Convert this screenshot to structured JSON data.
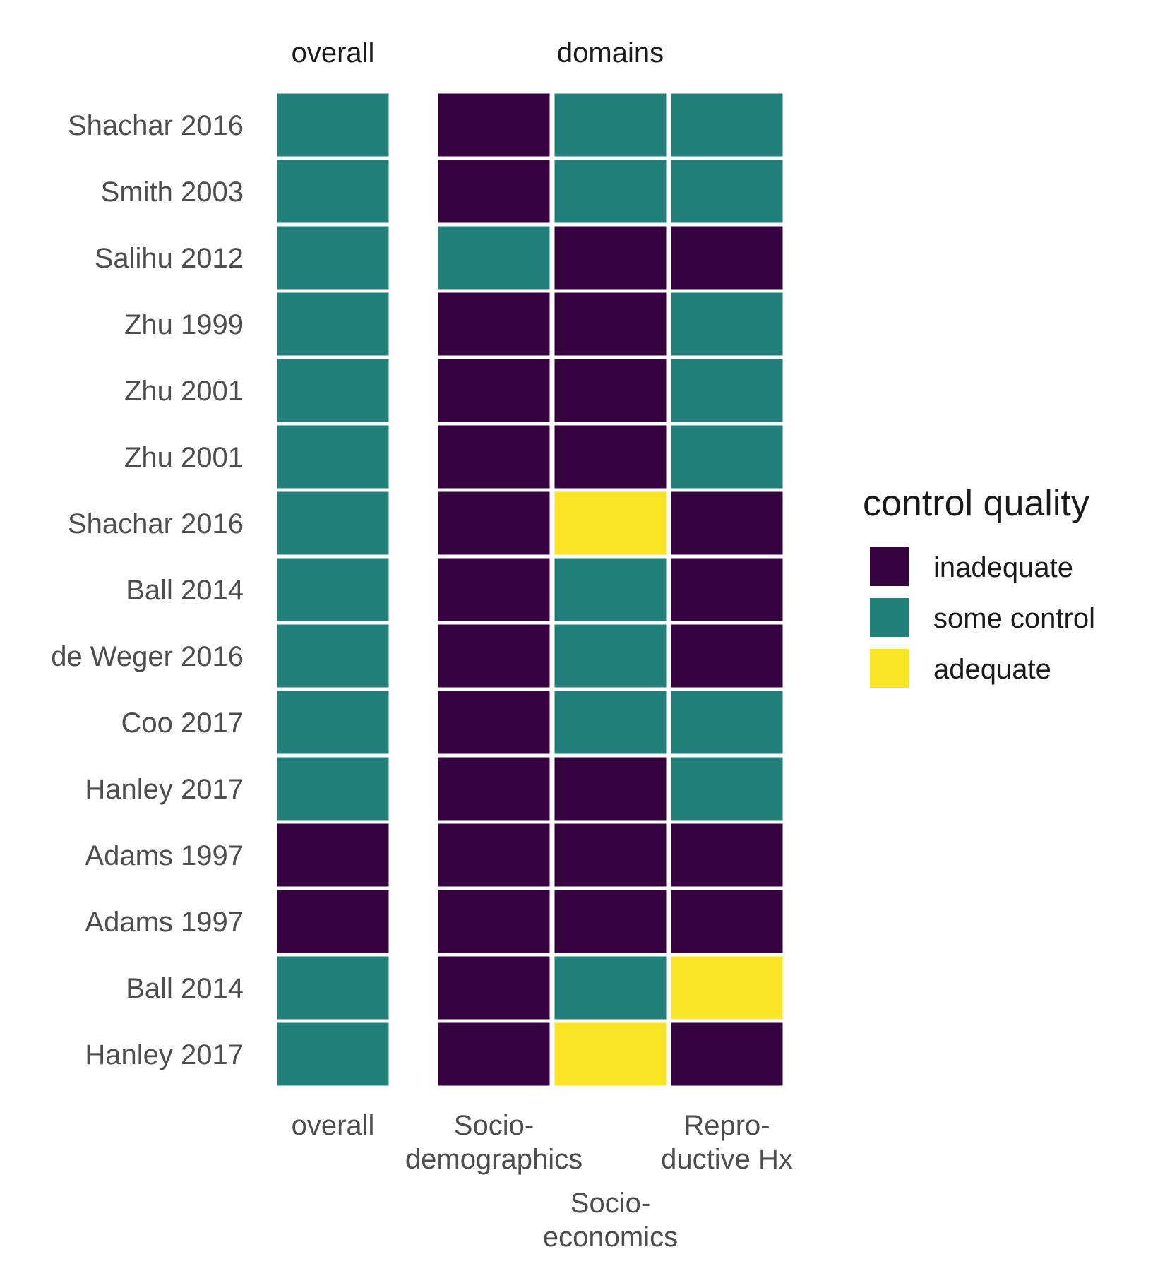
{
  "chart_data": {
    "type": "heatmap",
    "facets": [
      {
        "title": "overall",
        "columns": [
          [
            "overall"
          ]
        ]
      },
      {
        "title": "domains",
        "columns": [
          [
            "Socio-",
            "demographics"
          ],
          [
            "Socio-",
            "economics"
          ],
          [
            "Repro-",
            "ductive Hx"
          ]
        ]
      }
    ],
    "rows": [
      "Shachar 2016",
      "Smith 2003",
      "Salihu 2012",
      "Zhu 1999",
      "Zhu 2001",
      "Zhu 2001",
      "Shachar 2016",
      "Ball 2014",
      "de Weger 2016",
      "Coo 2017",
      "Hanley 2017",
      "Adams 1997",
      "Adams 1997",
      "Ball 2014",
      "Hanley 2017"
    ],
    "values": [
      [
        "some control",
        "inadequate",
        "some control",
        "some control"
      ],
      [
        "some control",
        "inadequate",
        "some control",
        "some control"
      ],
      [
        "some control",
        "some control",
        "inadequate",
        "inadequate"
      ],
      [
        "some control",
        "inadequate",
        "inadequate",
        "some control"
      ],
      [
        "some control",
        "inadequate",
        "inadequate",
        "some control"
      ],
      [
        "some control",
        "inadequate",
        "inadequate",
        "some control"
      ],
      [
        "some control",
        "inadequate",
        "adequate",
        "inadequate"
      ],
      [
        "some control",
        "inadequate",
        "some control",
        "inadequate"
      ],
      [
        "some control",
        "inadequate",
        "some control",
        "inadequate"
      ],
      [
        "some control",
        "inadequate",
        "some control",
        "some control"
      ],
      [
        "some control",
        "inadequate",
        "inadequate",
        "some control"
      ],
      [
        "inadequate",
        "inadequate",
        "inadequate",
        "inadequate"
      ],
      [
        "inadequate",
        "inadequate",
        "inadequate",
        "inadequate"
      ],
      [
        "some control",
        "inadequate",
        "some control",
        "adequate"
      ],
      [
        "some control",
        "inadequate",
        "adequate",
        "inadequate"
      ]
    ],
    "legend": {
      "title": "control quality",
      "position": "right",
      "levels": [
        {
          "label": "inadequate",
          "color": "#35013F"
        },
        {
          "label": "some control",
          "color": "#21817A"
        },
        {
          "label": "adequate",
          "color": "#FBE325"
        }
      ]
    },
    "grid": false
  }
}
